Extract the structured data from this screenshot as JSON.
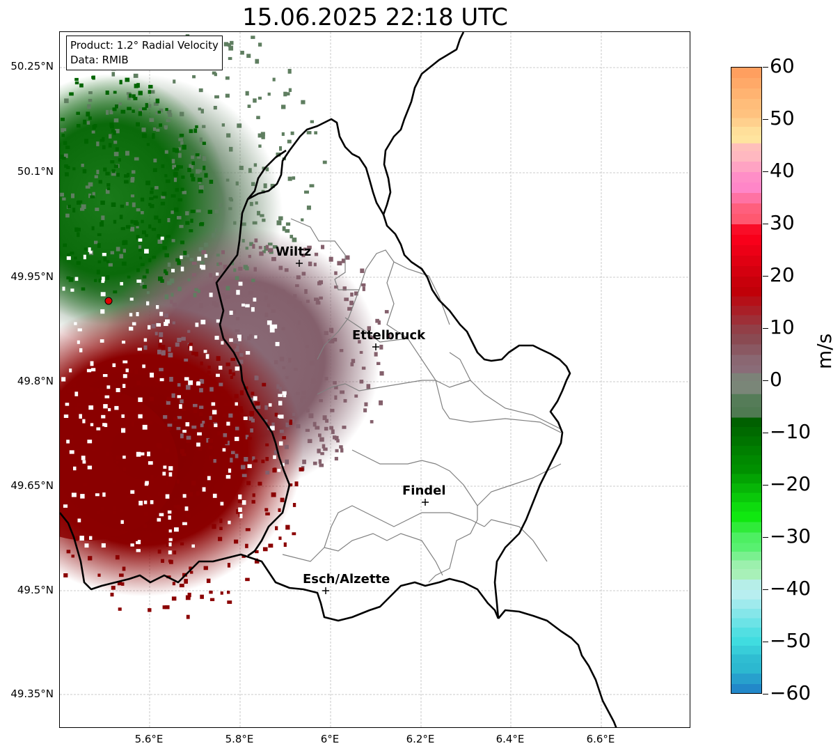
{
  "title": "15.06.2025 22:18 UTC",
  "info": {
    "product": "Product: 1.2° Radial Velocity",
    "data_source": "Data: RMIB"
  },
  "lat_ticks": [
    "50.25°N",
    "50.1°N",
    "49.95°N",
    "49.8°N",
    "49.65°N",
    "49.5°N",
    "49.35°N"
  ],
  "lon_ticks": [
    "5.6°E",
    "5.8°E",
    "6°E",
    "6.2°E",
    "6.4°E",
    "6.6°E"
  ],
  "cities": [
    {
      "name": "Wiltz",
      "lat": 49.97,
      "lon": 5.93
    },
    {
      "name": "Ettelbruck",
      "lat": 49.85,
      "lon": 6.1
    },
    {
      "name": "Findel",
      "lat": 49.63,
      "lon": 6.21
    },
    {
      "name": "Esch/Alzette",
      "lat": 49.5,
      "lon": 5.99
    }
  ],
  "radar_site": {
    "lat": 49.915,
    "lon": 5.505
  },
  "colorbar": {
    "unit": "m/s",
    "min": -60,
    "max": 60,
    "tick_labels": [
      "60",
      "50",
      "40",
      "30",
      "20",
      "10",
      "0",
      "−10",
      "−20",
      "−30",
      "−40",
      "−50",
      "−60"
    ],
    "tick_values": [
      60,
      50,
      40,
      30,
      20,
      10,
      0,
      -10,
      -20,
      -30,
      -40,
      -50,
      -60
    ],
    "stops": [
      {
        "v": 60,
        "c": "#ff9f5f"
      },
      {
        "v": 52,
        "c": "#ffc27f"
      },
      {
        "v": 47,
        "c": "#ffe49f"
      },
      {
        "v": 44,
        "c": "#ffb8c0"
      },
      {
        "v": 38,
        "c": "#ff86c8"
      },
      {
        "v": 32,
        "c": "#ff5870"
      },
      {
        "v": 28,
        "c": "#f8001a"
      },
      {
        "v": 18,
        "c": "#c00008"
      },
      {
        "v": 9,
        "c": "#8a4a52"
      },
      {
        "v": 3,
        "c": "#8a6c78"
      },
      {
        "v": 0,
        "c": "#7a8678"
      },
      {
        "v": -5,
        "c": "#4f7a52"
      },
      {
        "v": -7,
        "c": "#006000"
      },
      {
        "v": -16,
        "c": "#009000"
      },
      {
        "v": -25,
        "c": "#10e810"
      },
      {
        "v": -31,
        "c": "#58f070"
      },
      {
        "v": -36,
        "c": "#a8f0b8"
      },
      {
        "v": -40,
        "c": "#b8eef0"
      },
      {
        "v": -49,
        "c": "#40dce0"
      },
      {
        "v": -54,
        "c": "#2cb8d0"
      },
      {
        "v": -60,
        "c": "#2080c8"
      }
    ]
  },
  "colors": {
    "border": "#000000",
    "canton": "#808080",
    "grid": "#bbbbbb",
    "approaching": "#008000",
    "receding": "#8b0000",
    "radar_marker": "#e00000"
  }
}
